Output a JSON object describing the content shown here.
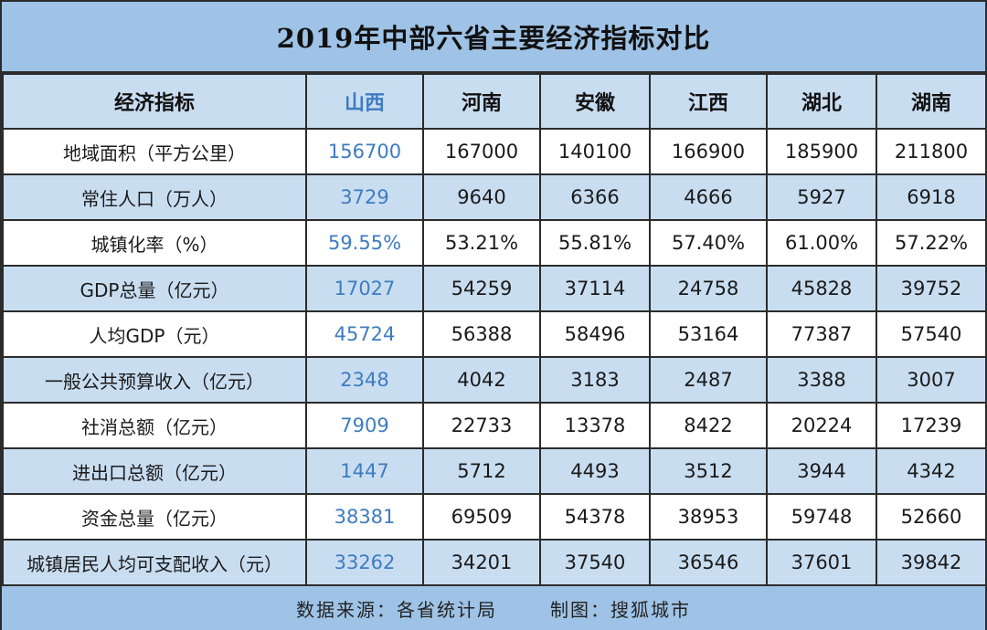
{
  "colors": {
    "title_band": "#9fc3e6",
    "alt_row": "#c9ddf1",
    "highlight_text": "#3e7cc0",
    "border": "#2b2b2b"
  },
  "chart_data": {
    "type": "table",
    "title": "2019年中部六省主要经济指标对比",
    "header_label": "经济指标",
    "columns": [
      "山西",
      "河南",
      "安徽",
      "江西",
      "湖北",
      "湖南"
    ],
    "highlight_column": "山西",
    "rows": [
      {
        "label": "地域面积（平方公里）",
        "values": [
          "156700",
          "167000",
          "140100",
          "166900",
          "185900",
          "211800"
        ]
      },
      {
        "label": "常住人口（万人）",
        "values": [
          "3729",
          "9640",
          "6366",
          "4666",
          "5927",
          "6918"
        ]
      },
      {
        "label": "城镇化率（%）",
        "values": [
          "59.55%",
          "53.21%",
          "55.81%",
          "57.40%",
          "61.00%",
          "57.22%"
        ]
      },
      {
        "label": "GDP总量（亿元）",
        "values": [
          "17027",
          "54259",
          "37114",
          "24758",
          "45828",
          "39752"
        ]
      },
      {
        "label": "人均GDP（元）",
        "values": [
          "45724",
          "56388",
          "58496",
          "53164",
          "77387",
          "57540"
        ]
      },
      {
        "label": "一般公共预算收入（亿元）",
        "values": [
          "2348",
          "4042",
          "3183",
          "2487",
          "3388",
          "3007"
        ]
      },
      {
        "label": "社消总额（亿元）",
        "values": [
          "7909",
          "22733",
          "13378",
          "8422",
          "20224",
          "17239"
        ]
      },
      {
        "label": "进出口总额（亿元）",
        "values": [
          "1447",
          "5712",
          "4493",
          "3512",
          "3944",
          "4342"
        ]
      },
      {
        "label": "资金总量（亿元）",
        "values": [
          "38381",
          "69509",
          "54378",
          "38953",
          "59748",
          "52660"
        ]
      },
      {
        "label": "城镇居民人均可支配收入（元）",
        "values": [
          "33262",
          "34201",
          "37540",
          "36546",
          "37601",
          "39842"
        ]
      }
    ]
  },
  "footer": {
    "source": "数据来源：各省统计局",
    "credit": "制图：搜狐城市"
  }
}
